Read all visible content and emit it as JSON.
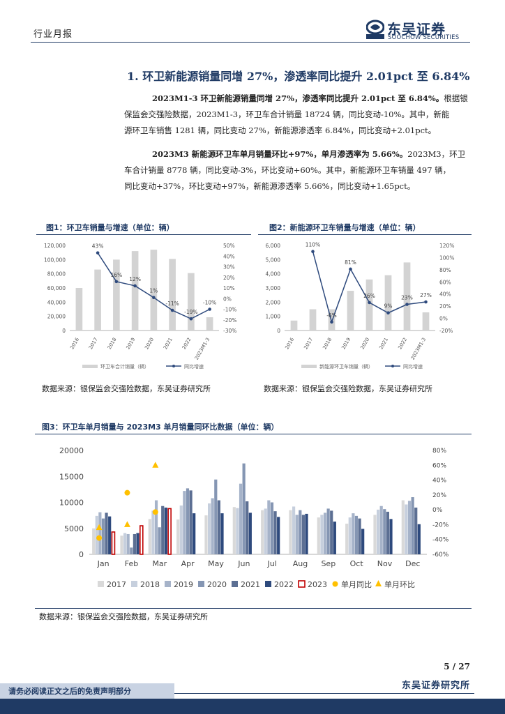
{
  "header": {
    "section": "行业月报",
    "logo_cn": "东吴证券",
    "logo_en": "SOOCHOW SECURITIES",
    "logo_mark": "SCS"
  },
  "title": "1.  环卫新能源销量同增 27%，渗透率同比提升 2.01pct 至 6.84%",
  "para1": {
    "lead": "2023M1-3 环卫新能源销量同增 27%，渗透率同比提升 2.01pct 至 6.84%。",
    "line1": "根据银",
    "line2": "保监会交强险数据，2023M1-3，环卫车合计销量 18724 辆，同比变动-10%。其中，新能",
    "line3": "源环卫车销售 1281 辆，同比变动 27%，新能源渗透率 6.84%，同比变动+2.01pct。"
  },
  "para2": {
    "lead": "2023M3 新能源环卫车单月销量环比+97%，单月渗透率为 5.66%。",
    "line1": "2023M3，环卫",
    "line2": "车合计销量 8778 辆，同比变动-3%，环比变动+60%。其中，新能源环卫车销量 497 辆，",
    "line3": "同比变动+37%，环比变动+97%，新能源渗透率 5.66%，同比变动+1.65pct。"
  },
  "fig1": {
    "title": "图1：环卫车销量与增速（单位：辆）",
    "source": "数据来源：银保监会交强险数据，东吴证券研究所"
  },
  "fig2": {
    "title": "图2：新能源环卫车销量与增速（单位：辆）",
    "source": "数据来源：银保监会交强险数据，东吴证券研究所"
  },
  "fig3": {
    "title": "图3：环卫车单月销量与 2023M3 单月销量同环比数据（单位：辆）",
    "source": "数据来源：银保监会交强险数据，东吴证券研究所"
  },
  "footer": {
    "page": "5 / 27",
    "org": "东吴证券研究所",
    "disclaimer": "请务必阅读正文之后的免责声明部分"
  },
  "colors": {
    "navy": "#1f3a64",
    "bar_gray": "#d3d3d3",
    "line_blue": "#2e4a7d"
  },
  "chart_data": [
    {
      "type": "bar",
      "categories": [
        "2016",
        "2017",
        "2018",
        "2019",
        "2020",
        "2021",
        "2022",
        "2023M1-3"
      ],
      "series": [
        {
          "name": "环卫车合计销量（辆）",
          "kind": "bar",
          "axis": "left",
          "values": [
            60000,
            86000,
            100000,
            112000,
            114000,
            101000,
            81000,
            18724
          ]
        },
        {
          "name": "同比增速",
          "kind": "line",
          "axis": "right",
          "values": [
            null,
            43,
            16,
            12,
            1,
            -11,
            -19,
            -10
          ]
        }
      ],
      "data_labels": [
        "",
        "43%",
        "16%",
        "12%",
        "1%",
        "-11%",
        "-19%",
        "-10%"
      ],
      "ylim": [
        0,
        120000
      ],
      "yticks": [
        "0",
        "20,000",
        "40,000",
        "60,000",
        "80,000",
        "100,000",
        "120,000"
      ],
      "y2lim": [
        -30,
        50
      ],
      "y2ticks": [
        "-30%",
        "-20%",
        "-10%",
        "0%",
        "10%",
        "20%",
        "30%",
        "40%",
        "50%"
      ],
      "legend": "bottom"
    },
    {
      "type": "bar",
      "categories": [
        "2016",
        "2017",
        "2018",
        "2019",
        "2020",
        "2021",
        "2022",
        "2023M1-3"
      ],
      "series": [
        {
          "name": "新能源环卫车销量（辆）",
          "kind": "bar",
          "axis": "left",
          "values": [
            700,
            1500,
            1500,
            2800,
            3600,
            3900,
            4800,
            1281
          ]
        },
        {
          "name": "同比增速",
          "kind": "line",
          "axis": "right",
          "values": [
            null,
            110,
            -6,
            81,
            26,
            9,
            23,
            27
          ]
        }
      ],
      "data_labels": [
        "",
        "110%",
        "-6%",
        "81%",
        "26%",
        "9%",
        "23%",
        "27%"
      ],
      "ylim": [
        0,
        6000
      ],
      "yticks": [
        "0",
        "1,000",
        "2,000",
        "3,000",
        "4,000",
        "5,000",
        "6,000"
      ],
      "y2lim": [
        -20,
        120
      ],
      "y2ticks": [
        "-20%",
        "0%",
        "20%",
        "40%",
        "60%",
        "80%",
        "100%",
        "120%"
      ],
      "legend": "bottom"
    },
    {
      "type": "bar",
      "categories": [
        "Jan",
        "Feb",
        "Mar",
        "Apr",
        "May",
        "Jun",
        "Jul",
        "Aug",
        "Sep",
        "Oct",
        "Nov",
        "Dec"
      ],
      "series": [
        {
          "name": "2017",
          "values": [
            5000,
            3600,
            6800,
            6700,
            7500,
            9100,
            8500,
            8500,
            7100,
            5900,
            7600,
            10400
          ]
        },
        {
          "name": "2018",
          "values": [
            7400,
            4100,
            8400,
            9400,
            9800,
            8900,
            8800,
            9200,
            7600,
            7100,
            8600,
            9600
          ]
        },
        {
          "name": "2019",
          "values": [
            8100,
            3900,
            10400,
            12200,
            10800,
            13600,
            10400,
            7600,
            8000,
            7900,
            9300,
            10300
          ]
        },
        {
          "name": "2020",
          "values": [
            6900,
            1300,
            5200,
            12700,
            14400,
            17500,
            10000,
            8500,
            8800,
            7400,
            8700,
            11000
          ]
        },
        {
          "name": "2021",
          "values": [
            8000,
            3900,
            9300,
            12300,
            10400,
            10200,
            8300,
            7600,
            8400,
            6900,
            8200,
            9000
          ]
        },
        {
          "name": "2022",
          "values": [
            7300,
            4100,
            9000,
            7900,
            7900,
            8000,
            7200,
            7800,
            6300,
            4900,
            6800,
            5800
          ]
        },
        {
          "name": "2023",
          "values": [
            4300,
            5500,
            8800,
            null,
            null,
            null,
            null,
            null,
            null,
            null,
            null,
            null
          ]
        },
        {
          "name": "单月同比",
          "kind": "scatter",
          "axis": "right",
          "values": [
            -38,
            23,
            -3,
            null,
            null,
            null,
            null,
            null,
            null,
            null,
            null,
            null
          ]
        },
        {
          "name": "单月环比",
          "kind": "scatter",
          "axis": "right",
          "values": [
            -24,
            -20,
            60,
            null,
            null,
            null,
            null,
            null,
            null,
            null,
            null,
            null
          ]
        }
      ],
      "ylim": [
        0,
        20000
      ],
      "yticks": [
        "0",
        "5000",
        "10000",
        "15000",
        "20000"
      ],
      "y2lim": [
        -60,
        80
      ],
      "y2ticks": [
        "-60%",
        "-40%",
        "-20%",
        "0%",
        "20%",
        "40%",
        "60%",
        "80%"
      ],
      "series_colors": [
        "#d9d9d9",
        "#c6cfdd",
        "#a6b3c9",
        "#8596b3",
        "#5c6f93",
        "#2e4a7d",
        "#c00000",
        "#ffc000",
        "#ffc000"
      ],
      "legend": "bottom"
    }
  ]
}
